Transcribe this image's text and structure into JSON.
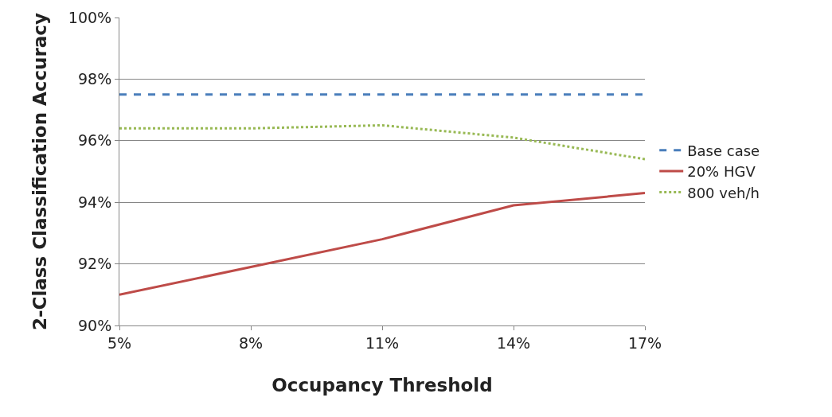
{
  "chart_data": {
    "type": "line",
    "xlabel": "Occupancy Threshold",
    "ylabel": "2-Class Classification Accuracy",
    "categories": [
      "5%",
      "8%",
      "11%",
      "14%",
      "17%"
    ],
    "series": [
      {
        "name": "Base case",
        "color": "#4a7ebb",
        "line_style": "dashed",
        "values": [
          97.5,
          97.5,
          97.5,
          97.5,
          97.5
        ]
      },
      {
        "name": "20% HGV",
        "color": "#be4b48",
        "line_style": "solid",
        "values": [
          91.0,
          91.9,
          92.8,
          93.9,
          94.3
        ]
      },
      {
        "name": "800 veh/h",
        "color": "#98b954",
        "line_style": "dotted",
        "values": [
          96.4,
          96.4,
          96.5,
          96.1,
          95.4
        ]
      }
    ],
    "ylim": [
      90,
      100
    ],
    "yticks": [
      {
        "value": 90,
        "label": "90%"
      },
      {
        "value": 92,
        "label": "92%"
      },
      {
        "value": 94,
        "label": "94%"
      },
      {
        "value": 96,
        "label": "96%"
      },
      {
        "value": 98,
        "label": "98%"
      },
      {
        "value": 100,
        "label": "100%"
      }
    ],
    "grid": "y",
    "legend": "right",
    "marker": "none"
  }
}
